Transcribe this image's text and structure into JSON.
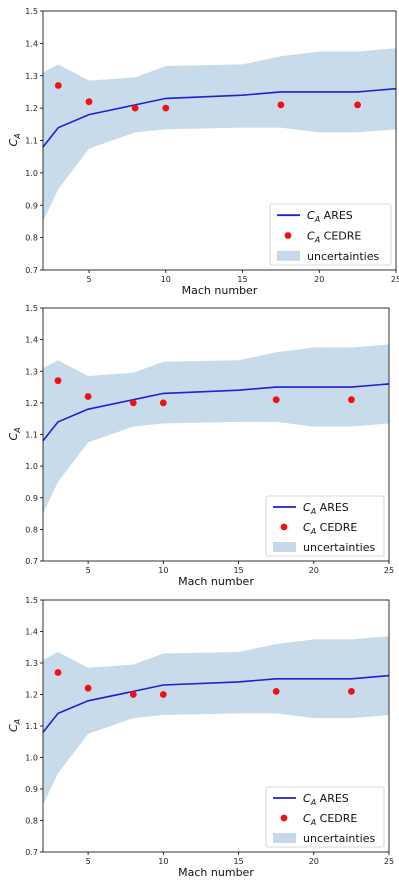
{
  "chart_data": [
    {
      "type": "line",
      "xlabel": "Mach number",
      "ylabel": "C_A",
      "xlim": [
        2,
        25
      ],
      "ylim": [
        0.7,
        1.5
      ],
      "xticks": [
        5,
        10,
        15,
        20,
        25
      ],
      "yticks": [
        0.7,
        0.8,
        0.9,
        1.0,
        1.1,
        1.2,
        1.3,
        1.4,
        1.5
      ],
      "legend_position": "bottom-right",
      "series": [
        {
          "name": "C_A ARES",
          "kind": "line",
          "color": "#1f1fd6",
          "x": [
            2,
            3,
            5,
            8,
            10,
            15,
            17.5,
            22.5,
            25
          ],
          "y": [
            1.08,
            1.14,
            1.18,
            1.21,
            1.23,
            1.24,
            1.25,
            1.25,
            1.26
          ]
        },
        {
          "name": "C_A CEDRE",
          "kind": "scatter",
          "color": "#ee1111",
          "x": [
            3,
            5,
            8,
            10,
            17.5,
            22.5
          ],
          "y": [
            1.27,
            1.22,
            1.2,
            1.2,
            1.21,
            1.21
          ]
        },
        {
          "name": "uncertainties",
          "kind": "band",
          "color": "#c5d9ea",
          "x": [
            2,
            3,
            5,
            8,
            10,
            15,
            17.5,
            20,
            22.5,
            25
          ],
          "upper": [
            1.31,
            1.335,
            1.285,
            1.295,
            1.33,
            1.335,
            1.36,
            1.375,
            1.375,
            1.385
          ],
          "lower": [
            0.85,
            0.95,
            1.075,
            1.125,
            1.135,
            1.14,
            1.14,
            1.125,
            1.125,
            1.135
          ]
        }
      ]
    },
    {
      "type": "line",
      "xlabel": "Mach number",
      "ylabel": "C_A",
      "xlim": [
        2,
        25
      ],
      "ylim": [
        0.7,
        1.5
      ],
      "xticks": [
        5,
        10,
        15,
        20,
        25
      ],
      "yticks": [
        0.7,
        0.8,
        0.9,
        1.0,
        1.1,
        1.2,
        1.3,
        1.4,
        1.5
      ],
      "legend_position": "bottom-right",
      "series": [
        {
          "name": "C_A ARES",
          "kind": "line",
          "color": "#1f1fd6",
          "x": [
            2,
            3,
            5,
            8,
            10,
            15,
            17.5,
            22.5,
            25
          ],
          "y": [
            1.08,
            1.14,
            1.18,
            1.21,
            1.23,
            1.24,
            1.25,
            1.25,
            1.26
          ]
        },
        {
          "name": "C_A CEDRE",
          "kind": "scatter",
          "color": "#ee1111",
          "x": [
            3,
            5,
            8,
            10,
            17.5,
            22.5
          ],
          "y": [
            1.27,
            1.22,
            1.2,
            1.2,
            1.21,
            1.21
          ]
        },
        {
          "name": "uncertainties",
          "kind": "band",
          "color": "#c5d9ea",
          "x": [
            2,
            3,
            5,
            8,
            10,
            15,
            17.5,
            20,
            22.5,
            25
          ],
          "upper": [
            1.31,
            1.335,
            1.285,
            1.295,
            1.33,
            1.335,
            1.36,
            1.375,
            1.375,
            1.385
          ],
          "lower": [
            0.85,
            0.95,
            1.075,
            1.125,
            1.135,
            1.14,
            1.14,
            1.125,
            1.125,
            1.135
          ]
        }
      ]
    },
    {
      "type": "line",
      "xlabel": "Mach number",
      "ylabel": "C_A",
      "xlim": [
        2,
        25
      ],
      "ylim": [
        0.7,
        1.5
      ],
      "xticks": [
        5,
        10,
        15,
        20,
        25
      ],
      "yticks": [
        0.7,
        0.8,
        0.9,
        1.0,
        1.1,
        1.2,
        1.3,
        1.4,
        1.5
      ],
      "legend_position": "bottom-right",
      "series": [
        {
          "name": "C_A ARES",
          "kind": "line",
          "color": "#1f1fd6",
          "x": [
            2,
            3,
            5,
            8,
            10,
            15,
            17.5,
            22.5,
            25
          ],
          "y": [
            1.08,
            1.14,
            1.18,
            1.21,
            1.23,
            1.24,
            1.25,
            1.25,
            1.26
          ]
        },
        {
          "name": "C_A CEDRE",
          "kind": "scatter",
          "color": "#ee1111",
          "x": [
            3,
            5,
            8,
            10,
            17.5,
            22.5
          ],
          "y": [
            1.27,
            1.22,
            1.2,
            1.2,
            1.21,
            1.21
          ]
        },
        {
          "name": "uncertainties",
          "kind": "band",
          "color": "#c5d9ea",
          "x": [
            2,
            3,
            5,
            8,
            10,
            15,
            17.5,
            20,
            22.5,
            25
          ],
          "upper": [
            1.31,
            1.335,
            1.285,
            1.295,
            1.33,
            1.335,
            1.36,
            1.375,
            1.375,
            1.385
          ],
          "lower": [
            0.85,
            0.95,
            1.075,
            1.125,
            1.135,
            1.14,
            1.14,
            1.125,
            1.125,
            1.135
          ]
        }
      ]
    }
  ]
}
